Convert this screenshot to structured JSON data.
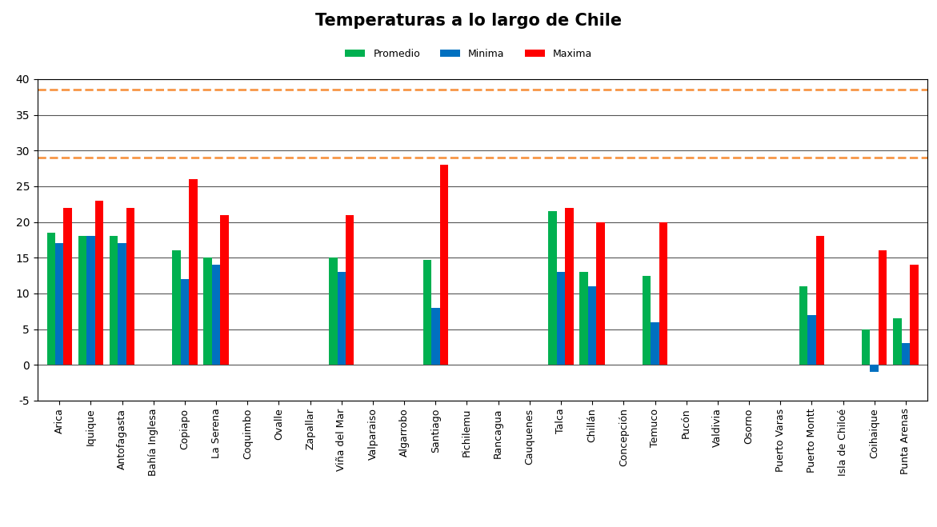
{
  "chart_data": {
    "type": "bar",
    "title": "Temperaturas a lo largo de Chile",
    "categories": [
      "Arica",
      "Iquique",
      "Antofagasta",
      "Bahía Inglesa",
      "Copiapo",
      "La Serena",
      "Coquimbo",
      "Ovalle",
      "Zapallar",
      "Viña del Mar",
      "Valparaiso",
      "Algarrobo",
      "Santiago",
      "Pichilemu",
      "Rancagua",
      "Cauquenes",
      "Talca",
      "Chillán",
      "Concepción",
      "Temuco",
      "Pucón",
      "Valdivia",
      "Osorno",
      "Puerto Varas",
      "Puerto Montt",
      "Isla de Chiloé",
      "Coihaique",
      "Punta Arenas"
    ],
    "series": [
      {
        "name": "Promedio",
        "color": "#00b050",
        "values": [
          18.5,
          18,
          18,
          null,
          16,
          15,
          null,
          null,
          null,
          15,
          null,
          null,
          14.7,
          null,
          null,
          null,
          21.5,
          13,
          null,
          12.5,
          null,
          null,
          null,
          null,
          11,
          null,
          5,
          6.5
        ]
      },
      {
        "name": "Minima",
        "color": "#0070c0",
        "values": [
          17,
          18,
          17,
          null,
          12,
          14,
          null,
          null,
          null,
          13,
          null,
          null,
          8,
          null,
          null,
          null,
          13,
          11,
          null,
          6,
          null,
          null,
          null,
          null,
          7,
          null,
          -1,
          3
        ]
      },
      {
        "name": "Maxima",
        "color": "#ff0000",
        "values": [
          22,
          23,
          22,
          null,
          26,
          21,
          null,
          null,
          null,
          21,
          null,
          null,
          28,
          null,
          null,
          null,
          22,
          20,
          null,
          20,
          null,
          null,
          null,
          null,
          18,
          null,
          16,
          14
        ]
      }
    ],
    "reference_lines": [
      {
        "value": 38.5,
        "color": "#f79646",
        "line_style": "dashed"
      },
      {
        "value": 29,
        "color": "#f79646",
        "line_style": "dashed"
      }
    ],
    "ylim": [
      -5,
      40
    ],
    "yticks": [
      -5,
      0,
      5,
      10,
      15,
      20,
      25,
      30,
      35,
      40
    ],
    "grid": true,
    "legend": "upper center"
  }
}
